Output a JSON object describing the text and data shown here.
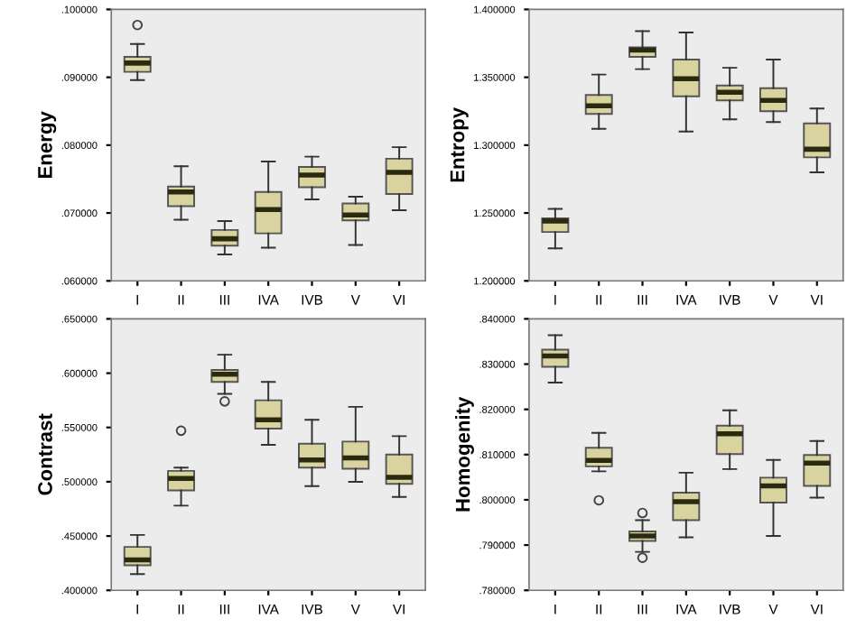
{
  "chart_data": [
    {
      "type": "box",
      "ylabel": "Energy",
      "categories": [
        "I",
        "II",
        "III",
        "IVA",
        "IVB",
        "V",
        "VI"
      ],
      "color": "#d9d3a0",
      "grid": false,
      "ylim": [
        0.06,
        0.1
      ],
      "yticks": [
        {
          "value": 0.06,
          "label": ".060000"
        },
        {
          "value": 0.07,
          "label": ".070000"
        },
        {
          "value": 0.08,
          "label": ".080000"
        },
        {
          "value": 0.09,
          "label": ".090000"
        },
        {
          "value": 0.1,
          "label": ".100000"
        }
      ],
      "boxes": [
        {
          "low": 0.0896,
          "q1": 0.0908,
          "median": 0.0921,
          "q3": 0.093,
          "high": 0.0949,
          "outliers": [
            0.0977
          ]
        },
        {
          "low": 0.069,
          "q1": 0.071,
          "median": 0.0731,
          "q3": 0.0739,
          "high": 0.0769
        },
        {
          "low": 0.0639,
          "q1": 0.0652,
          "median": 0.0662,
          "q3": 0.0675,
          "high": 0.0688
        },
        {
          "low": 0.0649,
          "q1": 0.067,
          "median": 0.0705,
          "q3": 0.0731,
          "high": 0.0776
        },
        {
          "low": 0.072,
          "q1": 0.0738,
          "median": 0.0756,
          "q3": 0.0768,
          "high": 0.0783
        },
        {
          "low": 0.0653,
          "q1": 0.0689,
          "median": 0.0697,
          "q3": 0.0714,
          "high": 0.0724
        },
        {
          "low": 0.0704,
          "q1": 0.0728,
          "median": 0.076,
          "q3": 0.078,
          "high": 0.0797
        }
      ]
    },
    {
      "type": "box",
      "ylabel": "Entropy",
      "categories": [
        "I",
        "II",
        "III",
        "IVA",
        "IVB",
        "V",
        "VI"
      ],
      "color": "#d9d3a0",
      "grid": false,
      "ylim": [
        1.2,
        1.4
      ],
      "yticks": [
        {
          "value": 1.2,
          "label": "1.200000"
        },
        {
          "value": 1.25,
          "label": "1.250000"
        },
        {
          "value": 1.3,
          "label": "1.300000"
        },
        {
          "value": 1.35,
          "label": "1.350000"
        },
        {
          "value": 1.4,
          "label": "1.400000"
        }
      ],
      "boxes": [
        {
          "low": 1.224,
          "q1": 1.236,
          "median": 1.244,
          "q3": 1.246,
          "high": 1.253
        },
        {
          "low": 1.312,
          "q1": 1.323,
          "median": 1.329,
          "q3": 1.337,
          "high": 1.352
        },
        {
          "low": 1.356,
          "q1": 1.365,
          "median": 1.37,
          "q3": 1.372,
          "high": 1.384
        },
        {
          "low": 1.31,
          "q1": 1.336,
          "median": 1.349,
          "q3": 1.363,
          "high": 1.383
        },
        {
          "low": 1.319,
          "q1": 1.333,
          "median": 1.339,
          "q3": 1.344,
          "high": 1.357
        },
        {
          "low": 1.317,
          "q1": 1.325,
          "median": 1.333,
          "q3": 1.342,
          "high": 1.363
        },
        {
          "low": 1.28,
          "q1": 1.291,
          "median": 1.297,
          "q3": 1.316,
          "high": 1.327
        }
      ]
    },
    {
      "type": "box",
      "ylabel": "Contrast",
      "categories": [
        "I",
        "II",
        "III",
        "IVA",
        "IVB",
        "V",
        "VI"
      ],
      "color": "#d9d3a0",
      "grid": false,
      "ylim": [
        0.4,
        0.65
      ],
      "yticks": [
        {
          "value": 0.4,
          "label": ".400000"
        },
        {
          "value": 0.45,
          "label": ".450000"
        },
        {
          "value": 0.5,
          "label": ".500000"
        },
        {
          "value": 0.55,
          "label": ".550000"
        },
        {
          "value": 0.6,
          "label": ".600000"
        },
        {
          "value": 0.65,
          "label": ".650000"
        }
      ],
      "boxes": [
        {
          "low": 0.415,
          "q1": 0.423,
          "median": 0.428,
          "q3": 0.44,
          "high": 0.451
        },
        {
          "low": 0.478,
          "q1": 0.492,
          "median": 0.503,
          "q3": 0.51,
          "high": 0.513,
          "outliers": [
            0.547
          ]
        },
        {
          "low": 0.581,
          "q1": 0.592,
          "median": 0.599,
          "q3": 0.603,
          "high": 0.617,
          "outliers": [
            0.574
          ]
        },
        {
          "low": 0.534,
          "q1": 0.549,
          "median": 0.557,
          "q3": 0.575,
          "high": 0.592
        },
        {
          "low": 0.496,
          "q1": 0.513,
          "median": 0.52,
          "q3": 0.535,
          "high": 0.557
        },
        {
          "low": 0.5,
          "q1": 0.512,
          "median": 0.522,
          "q3": 0.537,
          "high": 0.569
        },
        {
          "low": 0.486,
          "q1": 0.498,
          "median": 0.504,
          "q3": 0.525,
          "high": 0.542
        }
      ]
    },
    {
      "type": "box",
      "ylabel": "Homogenity",
      "categories": [
        "I",
        "II",
        "III",
        "IVA",
        "IVB",
        "V",
        "VI"
      ],
      "color": "#d9d3a0",
      "grid": false,
      "ylim": [
        0.78,
        0.84
      ],
      "yticks": [
        {
          "value": 0.78,
          "label": ".780000"
        },
        {
          "value": 0.79,
          "label": ".790000"
        },
        {
          "value": 0.8,
          "label": ".800000"
        },
        {
          "value": 0.81,
          "label": ".810000"
        },
        {
          "value": 0.82,
          "label": ".820000"
        },
        {
          "value": 0.83,
          "label": ".830000"
        },
        {
          "value": 0.84,
          "label": ".840000"
        }
      ],
      "boxes": [
        {
          "low": 0.8259,
          "q1": 0.8294,
          "median": 0.8318,
          "q3": 0.8332,
          "high": 0.8364
        },
        {
          "low": 0.8063,
          "q1": 0.8074,
          "median": 0.8087,
          "q3": 0.8115,
          "high": 0.8148,
          "outliers": [
            0.7999
          ]
        },
        {
          "low": 0.7885,
          "q1": 0.7909,
          "median": 0.792,
          "q3": 0.793,
          "high": 0.7955,
          "outliers": [
            0.7971,
            0.7872
          ]
        },
        {
          "low": 0.7917,
          "q1": 0.7955,
          "median": 0.7996,
          "q3": 0.8016,
          "high": 0.806
        },
        {
          "low": 0.8068,
          "q1": 0.8101,
          "median": 0.8146,
          "q3": 0.8164,
          "high": 0.8198
        },
        {
          "low": 0.792,
          "q1": 0.7994,
          "median": 0.8031,
          "q3": 0.8049,
          "high": 0.8088
        },
        {
          "low": 0.8005,
          "q1": 0.8031,
          "median": 0.8081,
          "q3": 0.8099,
          "high": 0.813
        }
      ]
    }
  ]
}
